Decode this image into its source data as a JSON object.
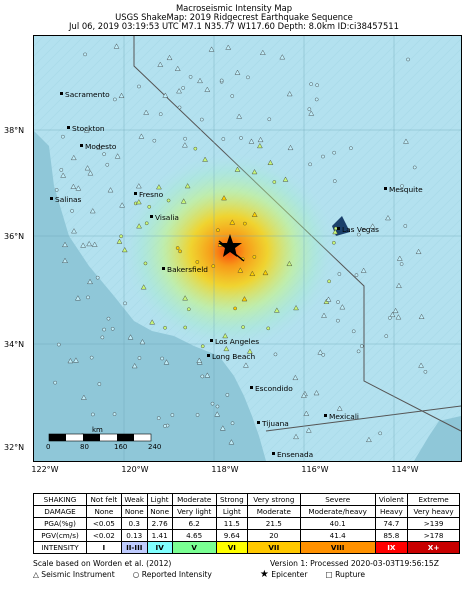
{
  "title": {
    "line1": "Macroseismic Intensity Map",
    "line2": "USGS ShakeMap: 2019 Ridgecrest Earthquake Sequence",
    "line3": "Jul 06, 2019 03:19:53 UTC M7.1 N35.77 W117.60 Depth: 8.0km ID:ci38457511"
  },
  "map": {
    "lat_labels": [
      "38°N",
      "36°N",
      "34°N",
      "32°N"
    ],
    "lon_labels": [
      "122°W",
      "120°W",
      "118°W",
      "116°W",
      "114°W"
    ],
    "cities": [
      "Sacramento",
      "Stockton",
      "Modesto",
      "Salinas",
      "Fresno",
      "Visalia",
      "Bakersfield",
      "Los Angeles",
      "Long Beach",
      "Escondido",
      "Tijuana",
      "Ensenada",
      "Mexicali",
      "Las Vegas",
      "Mesquite"
    ],
    "scalebar": {
      "unit": "km",
      "ticks": [
        "0",
        "80",
        "160",
        "240"
      ]
    },
    "colors": {
      "land": "#b3e1ef",
      "ocean": "#8fc7d8",
      "epicenter_fill": "#ff3c00"
    }
  },
  "legend": {
    "rows": [
      {
        "header": "SHAKING",
        "cells": [
          "Not felt",
          "Weak",
          "Light",
          "Moderate",
          "Strong",
          "Very strong",
          "Severe",
          "Violent",
          "Extreme"
        ]
      },
      {
        "header": "DAMAGE",
        "cells": [
          "None",
          "None",
          "None",
          "Very light",
          "Light",
          "Moderate",
          "Moderate/heavy",
          "Heavy",
          "Very heavy"
        ]
      },
      {
        "header": "PGA(%g)",
        "cells": [
          "<0.05",
          "0.3",
          "2.76",
          "6.2",
          "11.5",
          "21.5",
          "40.1",
          "74.7",
          ">139"
        ]
      },
      {
        "header": "PGV(cm/s)",
        "cells": [
          "<0.02",
          "0.13",
          "1.41",
          "4.65",
          "9.64",
          "20",
          "41.4",
          "85.8",
          ">178"
        ]
      },
      {
        "header": "INTENSITY",
        "cells": [
          "I",
          "II-III",
          "IV",
          "V",
          "VI",
          "VII",
          "VIII",
          "IX",
          "X+"
        ]
      }
    ],
    "intensity_colors": [
      "#ffffff",
      "#bfccff",
      "#a0e6ff",
      "#80ffff",
      "#7aff93",
      "#ffff00",
      "#ffc800",
      "#ff9100",
      "#ff0000",
      "#c80000"
    ]
  },
  "footer": {
    "scale_note": "Scale based on Worden et al. (2012)",
    "version": "Version 1: Processed 2020-03-03T19:56:15Z",
    "key_instrument": "Seismic Instrument",
    "key_reported": "Reported Intensity",
    "key_epicenter": "Epicenter",
    "key_rupture": "Rupture"
  }
}
